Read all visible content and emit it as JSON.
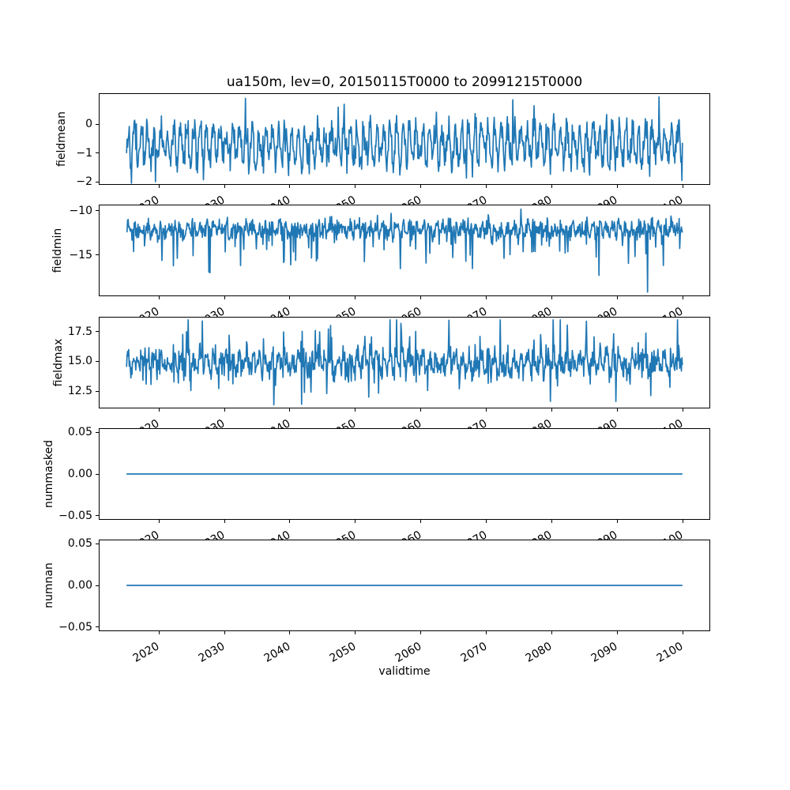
{
  "figure": {
    "title": "ua150m, lev=0, 20150115T0000 to 20991215T0000",
    "background": "#ffffff",
    "line_color": "#1f77b4",
    "axis_color": "#000000"
  },
  "x_axis": {
    "label": "validtime",
    "lim": [
      2010.8,
      2104.2
    ],
    "ticks": [
      {
        "v": 2020,
        "label": "2020"
      },
      {
        "v": 2030,
        "label": "2030"
      },
      {
        "v": 2040,
        "label": "2040"
      },
      {
        "v": 2050,
        "label": "2050"
      },
      {
        "v": 2060,
        "label": "2060"
      },
      {
        "v": 2070,
        "label": "2070"
      },
      {
        "v": 2080,
        "label": "2080"
      },
      {
        "v": 2090,
        "label": "2090"
      },
      {
        "v": 2100,
        "label": "2100"
      }
    ],
    "tick_rotation_deg": 30,
    "data_start": 2015.042,
    "data_end": 2099.958,
    "n_points": 1020
  },
  "rng_seed": 42,
  "chart_data": [
    {
      "type": "line",
      "ylabel": "fieldmean",
      "ylim": [
        -2.11,
        1.08
      ],
      "yticks": [
        {
          "v": 0,
          "label": "0"
        },
        {
          "v": -1,
          "label": "−1"
        },
        {
          "v": -2,
          "label": "−2"
        }
      ],
      "series": [
        {
          "name": "fieldmean",
          "n_points": 1020,
          "approx_mean": -0.72,
          "approx_min": -2.05,
          "approx_max": 0.95,
          "gen": {
            "kind": "seasonal_noise",
            "mean": -0.72,
            "seasonal_amp": 0.55,
            "noise_sd": 0.3,
            "clip": [
              -2.05,
              0.95
            ],
            "extremes": [
              {
                "t": 2019.5,
                "v": -2.0
              },
              {
                "t": 2033.2,
                "v": 0.9
              },
              {
                "t": 2074.0,
                "v": 0.85
              },
              {
                "t": 2096.4,
                "v": 0.95
              }
            ]
          }
        }
      ]
    },
    {
      "type": "line",
      "ylabel": "fieldmin",
      "ylim": [
        -19.67,
        -9.29
      ],
      "yticks": [
        {
          "v": -10,
          "label": "−10"
        },
        {
          "v": -15,
          "label": "−15"
        }
      ],
      "series": [
        {
          "name": "fieldmin",
          "n_points": 1020,
          "approx_mean": -12.1,
          "approx_min": -19.2,
          "approx_max": -9.8,
          "gen": {
            "kind": "seasonal_noise",
            "mean": -12.1,
            "seasonal_amp": 0.45,
            "noise_sd": 0.55,
            "spike_down": {
              "p": 0.07,
              "base": 1.0,
              "var": 3.0
            },
            "clip": [
              -19.2,
              -9.8
            ],
            "extremes": [
              {
                "t": 2027.8,
                "v": -17.0
              },
              {
                "t": 2087.2,
                "v": -17.3
              },
              {
                "t": 2094.6,
                "v": -19.2
              }
            ]
          }
        }
      ]
    },
    {
      "type": "line",
      "ylabel": "fieldmax",
      "ylim": [
        11.05,
        18.75
      ],
      "yticks": [
        {
          "v": 17.5,
          "label": "17.5"
        },
        {
          "v": 15.0,
          "label": "15.0"
        },
        {
          "v": 12.5,
          "label": "12.5"
        }
      ],
      "series": [
        {
          "name": "fieldmax",
          "n_points": 1020,
          "approx_mean": 14.9,
          "approx_min": 11.35,
          "approx_max": 18.5,
          "gen": {
            "kind": "seasonal_noise",
            "mean": 14.9,
            "seasonal_amp": 0.6,
            "noise_sd": 0.6,
            "spike_up": {
              "p": 0.05,
              "base": 0.8,
              "var": 2.4
            },
            "spike_down": {
              "p": 0.03,
              "base": 0.8,
              "var": 2.0
            },
            "clip": [
              11.35,
              18.5
            ],
            "extremes": [
              {
                "t": 2026.6,
                "v": 18.4
              },
              {
                "t": 2041.8,
                "v": 11.4
              },
              {
                "t": 2099.2,
                "v": 18.5
              }
            ]
          }
        }
      ]
    },
    {
      "type": "line",
      "ylabel": "nummasked",
      "ylim": [
        -0.055,
        0.055
      ],
      "yticks": [
        {
          "v": 0.05,
          "label": "0.05"
        },
        {
          "v": 0.0,
          "label": "0.00"
        },
        {
          "v": -0.05,
          "label": "−0.05"
        }
      ],
      "series": [
        {
          "name": "nummasked",
          "n_points": 1020,
          "approx_mean": 0.0,
          "approx_min": 0.0,
          "approx_max": 0.0,
          "gen": {
            "kind": "constant",
            "value": 0.0
          }
        }
      ]
    },
    {
      "type": "line",
      "ylabel": "numnan",
      "ylim": [
        -0.055,
        0.055
      ],
      "yticks": [
        {
          "v": 0.05,
          "label": "0.05"
        },
        {
          "v": 0.0,
          "label": "0.00"
        },
        {
          "v": -0.05,
          "label": "−0.05"
        }
      ],
      "series": [
        {
          "name": "numnan",
          "n_points": 1020,
          "approx_mean": 0.0,
          "approx_min": 0.0,
          "approx_max": 0.0,
          "gen": {
            "kind": "constant",
            "value": 0.0
          }
        }
      ]
    }
  ]
}
